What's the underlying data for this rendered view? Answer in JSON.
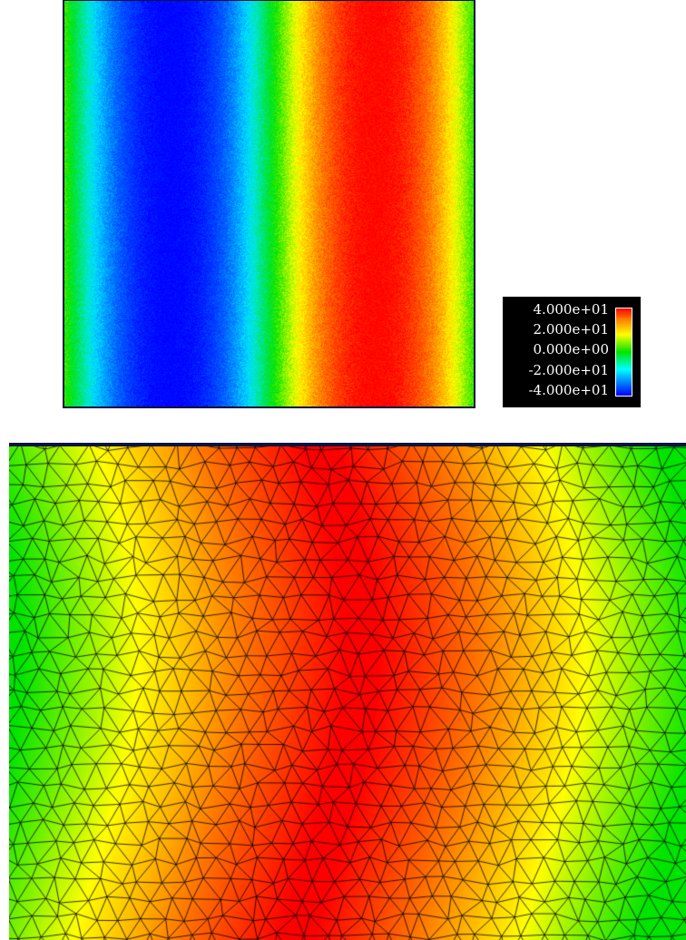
{
  "colorbar": {
    "ticks": [
      "4.000e+01",
      "2.000e+01",
      "0.000e+00",
      "-2.000e+01",
      "-4.000e+01"
    ],
    "range": [
      -40,
      40
    ],
    "colormap": [
      "#0000ff",
      "#00ffff",
      "#00e400",
      "#ffff00",
      "#ff0000"
    ]
  },
  "top_plot": {
    "description_type": "scalar-field",
    "pattern": "vertical-bands"
  },
  "bottom_plot": {
    "description_type": "triangular-mesh",
    "edge_color": "#000000"
  }
}
